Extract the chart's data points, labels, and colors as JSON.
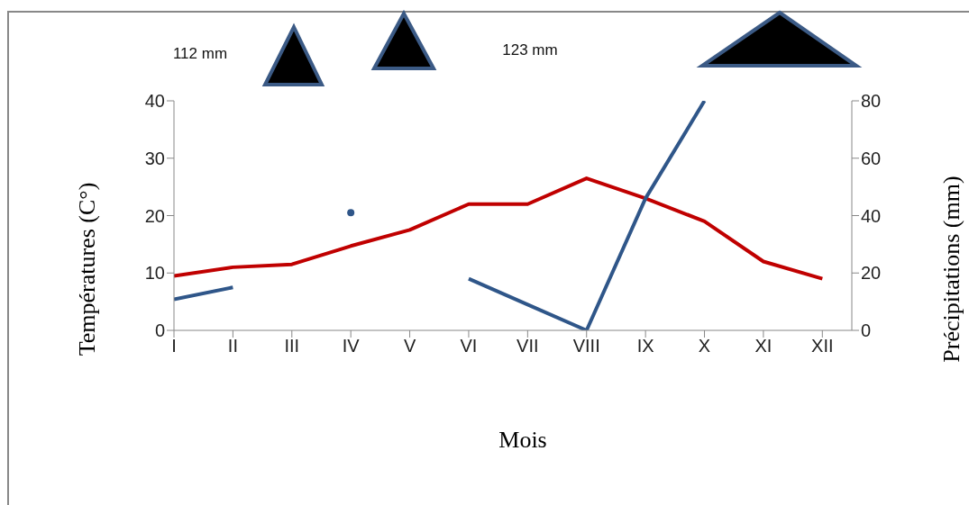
{
  "chart_data": {
    "type": "line",
    "xlabel": "Mois",
    "ylabel": "Températures (C°)",
    "y2label": "Précipitations (mm)",
    "categories": [
      "I",
      "II",
      "III",
      "IV",
      "V",
      "VI",
      "VII",
      "VIII",
      "IX",
      "X",
      "XI",
      "XII"
    ],
    "series": [
      {
        "color": "#c00000",
        "values": [
          9.5,
          11,
          11.5,
          14.7,
          17.5,
          22,
          22,
          26.5,
          23,
          19,
          12,
          9
        ]
      },
      {
        "color": "#2f5689",
        "axis": "y2",
        "values": [
          10.8,
          15,
          null,
          41,
          null,
          18,
          9,
          0,
          46,
          80,
          null,
          null
        ]
      }
    ],
    "ylim": [
      0,
      40
    ],
    "yticks": [
      0,
      10,
      20,
      30,
      40
    ],
    "y2lim": [
      0,
      80
    ],
    "y2ticks": [
      0,
      20,
      40,
      60,
      80
    ],
    "annotations": [
      "112 mm",
      "123 mm"
    ],
    "marker": "none"
  }
}
